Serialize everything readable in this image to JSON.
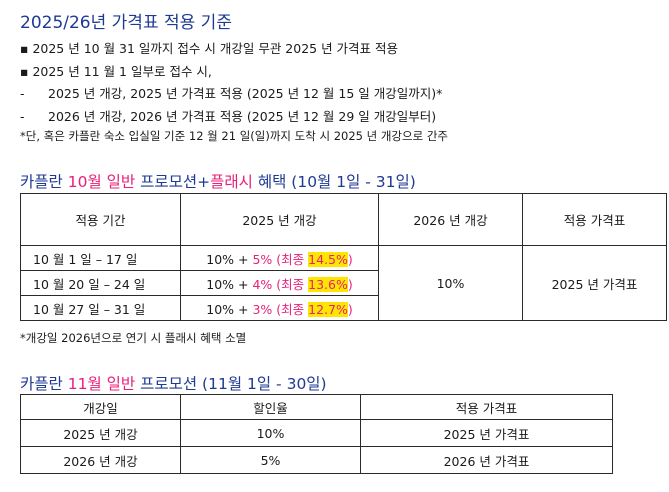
{
  "heading": "2025/26년 가격표 적용 기준",
  "rules": {
    "line1": "▪ 2025 년 10 월 31 일까지 접수 시 개강일 무관 2025 년 가격표 적용",
    "line2": "▪ 2025 년 11 월 1 일부로 접수 시,",
    "line3_dash": "-",
    "line3": "2025 년 개강, 2025 년 가격표 적용 (2025 년 12 월 15 일 개강일까지)*",
    "line4_dash": "-",
    "line4": "2026 년 개강, 2026 년 가격표 적용 (2025 년 12 월 29 일 개강일부터)",
    "footnote": "*단, 혹은 카플란 숙소 입실일 기준 12 월 21 일(일)까지 도착 시 2025 년 개강으로 간주"
  },
  "october": {
    "title_part1": "카플란 ",
    "title_part2": "10월 일반",
    "title_part3": " 프로모션+",
    "title_part4": "플래시",
    "title_part5": " 혜택 (10월 1일 - 31일)",
    "headers": [
      "적용 기간",
      "2025 년 개강",
      "2026 년 개강",
      "적용 가격표"
    ],
    "rows": [
      {
        "period": "10 월 1 일 – 17 일",
        "base": "10% + ",
        "flash": "5% (최종 ",
        "final": "14.5%",
        "close": ")"
      },
      {
        "period": "10 월 20 일 – 24 일",
        "base": "10% + ",
        "flash": "4% (최종 ",
        "final": "13.6%",
        "close": ")"
      },
      {
        "period": "10 월 27 일 – 31 일",
        "base": "10% + ",
        "flash": "3% (최종 ",
        "final": "12.7%",
        "close": ")"
      }
    ],
    "rate_2026": "10%",
    "price_table": "2025 년 가격표",
    "note": "*개강일 2026년으로 연기 시 플래시 혜택 소멸"
  },
  "november": {
    "title_part1": "카플란 ",
    "title_part2": "11월 일반",
    "title_part3": " 프로모션 (11월 1일 - 30일)",
    "headers": [
      "개강일",
      "할인율",
      "적용 가격표"
    ],
    "rows": [
      {
        "start": "2025 년 개강",
        "discount": "10%",
        "table": "2025 년 가격표"
      },
      {
        "start": "2026 년 개강",
        "discount": "5%",
        "table": "2026 년 가격표"
      }
    ]
  },
  "colors": {
    "navy": "#1f3a93",
    "pink": "#e8207a",
    "highlight": "#ffe600"
  }
}
